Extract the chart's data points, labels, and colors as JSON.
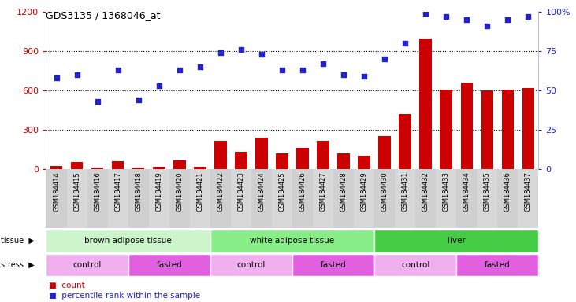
{
  "title": "GDS3135 / 1368046_at",
  "samples": [
    "GSM184414",
    "GSM184415",
    "GSM184416",
    "GSM184417",
    "GSM184418",
    "GSM184419",
    "GSM184420",
    "GSM184421",
    "GSM184422",
    "GSM184423",
    "GSM184424",
    "GSM184425",
    "GSM184426",
    "GSM184427",
    "GSM184428",
    "GSM184429",
    "GSM184430",
    "GSM184431",
    "GSM184432",
    "GSM184433",
    "GSM184434",
    "GSM184435",
    "GSM184436",
    "GSM184437"
  ],
  "count": [
    25,
    55,
    10,
    60,
    15,
    20,
    65,
    20,
    215,
    130,
    240,
    120,
    160,
    215,
    120,
    100,
    255,
    420,
    1000,
    610,
    660,
    600,
    610,
    620
  ],
  "percentile": [
    58,
    60,
    43,
    63,
    44,
    53,
    63,
    65,
    74,
    76,
    73,
    63,
    63,
    67,
    60,
    59,
    70,
    80,
    99,
    97,
    95,
    91,
    95,
    97
  ],
  "ylim_left": [
    0,
    1200
  ],
  "ylim_right": [
    0,
    100
  ],
  "yticks_left": [
    0,
    300,
    600,
    900,
    1200
  ],
  "yticks_right": [
    0,
    25,
    50,
    75,
    100
  ],
  "tissue_groups": [
    {
      "label": "brown adipose tissue",
      "start": 0,
      "end": 8,
      "color": "#ccf5cc"
    },
    {
      "label": "white adipose tissue",
      "start": 8,
      "end": 16,
      "color": "#88ee88"
    },
    {
      "label": "liver",
      "start": 16,
      "end": 24,
      "color": "#44cc44"
    }
  ],
  "stress_groups": [
    {
      "label": "control",
      "start": 0,
      "end": 4,
      "color": "#f0b0f0"
    },
    {
      "label": "fasted",
      "start": 4,
      "end": 8,
      "color": "#e060e0"
    },
    {
      "label": "control",
      "start": 8,
      "end": 12,
      "color": "#f0b0f0"
    },
    {
      "label": "fasted",
      "start": 12,
      "end": 16,
      "color": "#e060e0"
    },
    {
      "label": "control",
      "start": 16,
      "end": 20,
      "color": "#f0b0f0"
    },
    {
      "label": "fasted",
      "start": 20,
      "end": 24,
      "color": "#e060e0"
    }
  ],
  "bar_color": "#cc0000",
  "dot_color": "#2222cc",
  "left_axis_color": "#cc0000",
  "right_axis_color": "#2222cc",
  "tick_label_bg": "#d8d8d8"
}
